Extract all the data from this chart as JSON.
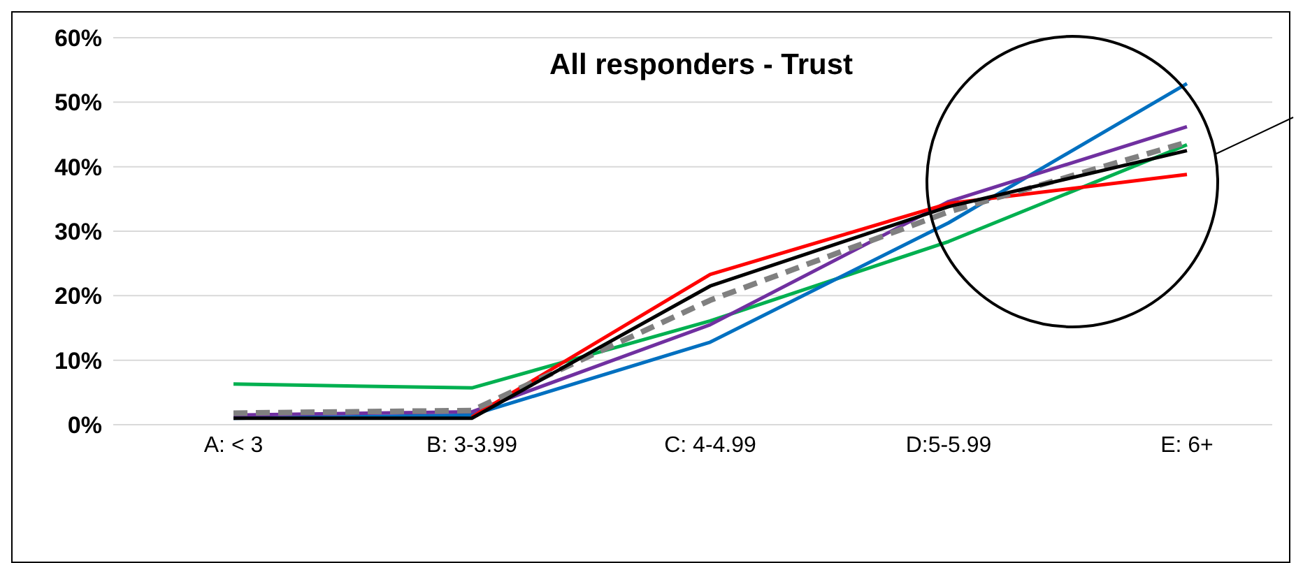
{
  "chart_data": {
    "type": "line",
    "title": "All responders - Trust",
    "categories": [
      "A: < 3",
      "B: 3-3.99",
      "C: 4-4.99",
      "D:5-5.99",
      "E: 6+"
    ],
    "series": [
      {
        "color": "#00b050",
        "values": [
          6.3,
          5.7,
          16.1,
          28.4,
          43.4
        ]
      },
      {
        "color": "#0070c0",
        "values": [
          1.0,
          1.5,
          12.8,
          31.3,
          52.9
        ]
      },
      {
        "color": "#7030a0",
        "values": [
          1.5,
          2.0,
          15.5,
          34.6,
          46.2
        ]
      },
      {
        "color": "#ff0000",
        "values": [
          null,
          1.2,
          23.3,
          34.3,
          38.8
        ]
      },
      {
        "color": "#808080",
        "line_style": "dashed",
        "values": [
          1.8,
          2.2,
          19.3,
          33.0,
          43.8
        ]
      },
      {
        "color": "#000000",
        "values": [
          1.0,
          1.0,
          21.5,
          33.8,
          42.5
        ]
      }
    ],
    "ylim": [
      0,
      60
    ],
    "yticks": [
      {
        "value": 0,
        "label": "0%"
      },
      {
        "value": 10,
        "label": "10%"
      },
      {
        "value": 20,
        "label": "20%"
      },
      {
        "value": 30,
        "label": "30%"
      },
      {
        "value": 40,
        "label": "40%"
      },
      {
        "value": 50,
        "label": "50%"
      },
      {
        "value": 60,
        "label": "60%"
      }
    ],
    "grid": "y",
    "legend": false,
    "marker": "none"
  }
}
